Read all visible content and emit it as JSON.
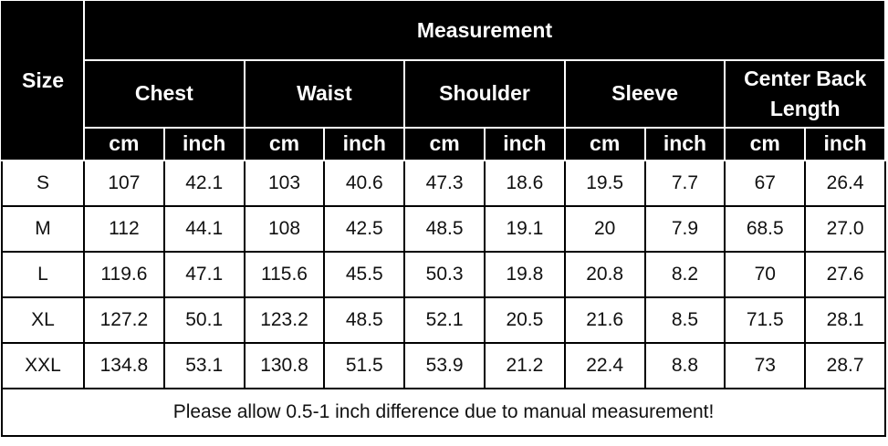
{
  "header": {
    "size": "Size",
    "measurement": "Measurement",
    "groups": [
      "Chest",
      "Waist",
      "Shoulder",
      "Sleeve",
      "Center Back Length"
    ],
    "units": [
      "cm",
      "inch",
      "cm",
      "inch",
      "cm",
      "inch",
      "cm",
      "inch",
      "cm",
      "inch"
    ]
  },
  "table": {
    "rows": [
      [
        "S",
        "107",
        "42.1",
        "103",
        "40.6",
        "47.3",
        "18.6",
        "19.5",
        "7.7",
        "67",
        "26.4"
      ],
      [
        "M",
        "112",
        "44.1",
        "108",
        "42.5",
        "48.5",
        "19.1",
        "20",
        "7.9",
        "68.5",
        "27.0"
      ],
      [
        "L",
        "119.6",
        "47.1",
        "115.6",
        "45.5",
        "50.3",
        "19.8",
        "20.8",
        "8.2",
        "70",
        "27.6"
      ],
      [
        "XL",
        "127.2",
        "50.1",
        "123.2",
        "48.5",
        "52.1",
        "20.5",
        "21.6",
        "8.5",
        "71.5",
        "28.1"
      ],
      [
        "XXL",
        "134.8",
        "53.1",
        "130.8",
        "51.5",
        "53.9",
        "21.2",
        "22.4",
        "8.8",
        "73",
        "28.7"
      ]
    ]
  },
  "note": "Please allow 0.5-1 inch difference due to manual measurement!"
}
